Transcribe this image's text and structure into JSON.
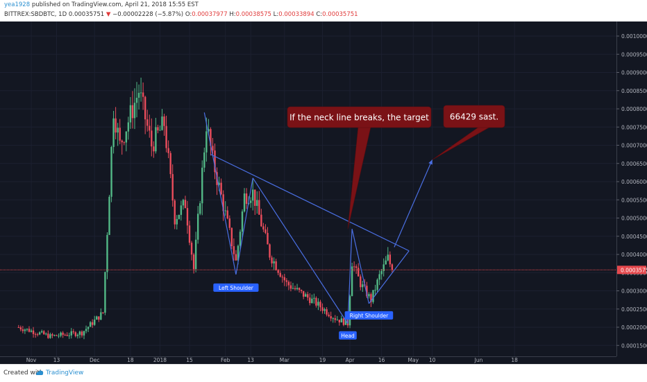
{
  "header": {
    "user": "yea1928",
    "published": "published on TradingView.com, April 21, 2018 15:55 EST",
    "symbol": "BITTREX:SBDBTC, 1D",
    "last": "0.00035751",
    "arrow": "▼",
    "change": "−0.00002228 (−5.87%)",
    "o_label": "O:",
    "o_value": "0.00037977",
    "h_label": "H:",
    "h_value": "0.00038575",
    "l_label": "L:",
    "l_value": "0.00033894",
    "c_label": "C:",
    "c_value": "0.00035751"
  },
  "footer": {
    "created_with": "Created with",
    "brand": "TradingView"
  },
  "colors": {
    "background": "#131722",
    "grid": "#1c2030",
    "up": "#53b987",
    "down": "#eb4d5c",
    "drawing": "#4a6fe3",
    "callout": "#7a1216",
    "label": "#2962ff",
    "price_line": "#e5484d"
  },
  "chart_data": {
    "type": "candlestick",
    "title": "BITTREX:SBDBTC, 1D",
    "x_ticks": [
      "Nov",
      "13",
      "Dec",
      "18",
      "2018",
      "15",
      "Feb",
      "13",
      "Mar",
      "19",
      "Apr",
      "16",
      "May",
      "10",
      "Jun",
      "18"
    ],
    "y_ticks": [
      "0.00100000",
      "0.00095000",
      "0.00090000",
      "0.00085000",
      "0.00080000",
      "0.00075000",
      "0.00070000",
      "0.00065000",
      "0.00060000",
      "0.00055000",
      "0.00050000",
      "0.00045000",
      "0.00040000",
      "0.00035000",
      "0.00030000",
      "0.00025000",
      "0.00020000",
      "0.00015000"
    ],
    "ylim": [
      0.00012,
      0.00104
    ],
    "current_price": 0.00035751,
    "current_price_label": "0.00035751",
    "price_anchors": [
      {
        "date": "2017-10-26",
        "price": 0.0002
      },
      {
        "date": "2017-11-10",
        "price": 0.000175
      },
      {
        "date": "2017-11-25",
        "price": 0.000185
      },
      {
        "date": "2017-12-05",
        "price": 0.00024
      },
      {
        "date": "2017-12-10",
        "price": 0.0008
      },
      {
        "date": "2017-12-13",
        "price": 0.0007
      },
      {
        "date": "2017-12-22",
        "price": 0.00085
      },
      {
        "date": "2017-12-28",
        "price": 0.0007
      },
      {
        "date": "2018-01-03",
        "price": 0.00076
      },
      {
        "date": "2018-01-08",
        "price": 0.0005
      },
      {
        "date": "2018-01-13",
        "price": 0.00054
      },
      {
        "date": "2018-01-17",
        "price": 0.00036
      },
      {
        "date": "2018-01-23",
        "price": 0.00076
      },
      {
        "date": "2018-01-26",
        "price": 0.00066
      },
      {
        "date": "2018-02-01",
        "price": 0.00051
      },
      {
        "date": "2018-02-06",
        "price": 0.00038
      },
      {
        "date": "2018-02-10",
        "price": 0.00056
      },
      {
        "date": "2018-02-14",
        "price": 0.00057
      },
      {
        "date": "2018-02-22",
        "price": 0.0004
      },
      {
        "date": "2018-03-02",
        "price": 0.00032
      },
      {
        "date": "2018-03-15",
        "price": 0.00027
      },
      {
        "date": "2018-03-25",
        "price": 0.000225
      },
      {
        "date": "2018-03-31",
        "price": 0.00021
      },
      {
        "date": "2018-04-02",
        "price": 0.00038
      },
      {
        "date": "2018-04-06",
        "price": 0.00032
      },
      {
        "date": "2018-04-11",
        "price": 0.000275
      },
      {
        "date": "2018-04-15",
        "price": 0.00034
      },
      {
        "date": "2018-04-19",
        "price": 0.00039
      },
      {
        "date": "2018-04-21",
        "price": 0.00035751
      }
    ],
    "lines": [
      {
        "from": {
          "date": "2018-01-25",
          "price": 0.000675
        },
        "to": {
          "date": "2018-04-29",
          "price": 0.00041
        }
      },
      {
        "from": {
          "date": "2018-01-22",
          "price": 0.00079
        },
        "to": {
          "date": "2018-02-06",
          "price": 0.000345
        }
      },
      {
        "from": {
          "date": "2018-02-06",
          "price": 0.000345
        },
        "to": {
          "date": "2018-02-14",
          "price": 0.00061
        }
      },
      {
        "from": {
          "date": "2018-02-14",
          "price": 0.00061
        },
        "to": {
          "date": "2018-03-31",
          "price": 0.00021
        }
      },
      {
        "from": {
          "date": "2018-03-31",
          "price": 0.00021
        },
        "to": {
          "date": "2018-04-02",
          "price": 0.00047
        }
      },
      {
        "from": {
          "date": "2018-04-02",
          "price": 0.00047
        },
        "to": {
          "date": "2018-04-10",
          "price": 0.000265
        }
      },
      {
        "from": {
          "date": "2018-04-10",
          "price": 0.000265
        },
        "to": {
          "date": "2018-04-29",
          "price": 0.00041
        }
      },
      {
        "from": {
          "date": "2018-04-22",
          "price": 0.00042
        },
        "to": {
          "date": "2018-05-10",
          "price": 0.00066
        }
      }
    ],
    "labels": [
      {
        "text": "Left Shoulder",
        "date": "2018-02-06",
        "price": 0.000345
      },
      {
        "text": "Head",
        "date": "2018-03-31",
        "price": 0.00021
      },
      {
        "text": "Right Shoulder",
        "date": "2018-04-10",
        "price": 0.000265
      }
    ],
    "callouts": [
      {
        "text": "If the neck line breaks, the target",
        "pointer": {
          "date": "2018-03-31",
          "price": 0.00047
        }
      },
      {
        "text": "66429 sast.",
        "pointer": {
          "date": "2018-05-10",
          "price": 0.00066
        }
      }
    ]
  }
}
